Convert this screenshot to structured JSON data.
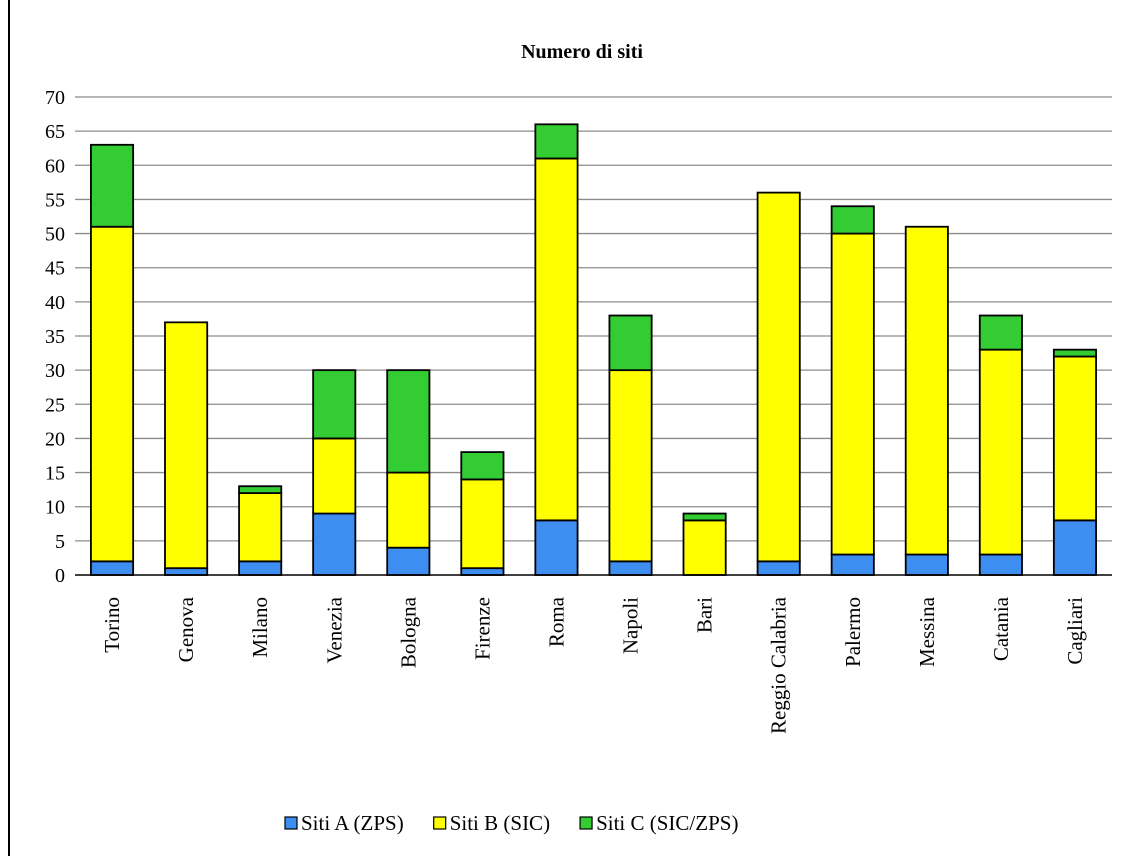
{
  "chart_data": {
    "type": "bar",
    "stacked": true,
    "title": "Numero di siti",
    "xlabel": "",
    "ylabel": "",
    "ylim": [
      0,
      70
    ],
    "y_ticks": [
      0,
      5,
      10,
      15,
      20,
      25,
      30,
      35,
      40,
      45,
      50,
      55,
      60,
      65,
      70
    ],
    "grid": true,
    "legend_position": "bottom",
    "categories": [
      "Torino",
      "Genova",
      "Milano",
      "Venezia",
      "Bologna",
      "Firenze",
      "Roma",
      "Napoli",
      "Bari",
      "Reggio Calabria",
      "Palermo",
      "Messina",
      "Catania",
      "Cagliari"
    ],
    "series": [
      {
        "name": "Siti A (ZPS)",
        "color": "#3d8ef0",
        "values": [
          2,
          1,
          2,
          9,
          4,
          1,
          8,
          2,
          0,
          2,
          3,
          3,
          3,
          8
        ]
      },
      {
        "name": "Siti B (SIC)",
        "color": "#ffff00",
        "values": [
          49,
          36,
          10,
          11,
          11,
          13,
          53,
          28,
          8,
          54,
          47,
          48,
          30,
          24
        ]
      },
      {
        "name": "Siti C (SIC/ZPS)",
        "color": "#33cc33",
        "values": [
          12,
          0,
          1,
          10,
          15,
          4,
          5,
          8,
          1,
          0,
          4,
          0,
          5,
          1
        ]
      }
    ]
  }
}
